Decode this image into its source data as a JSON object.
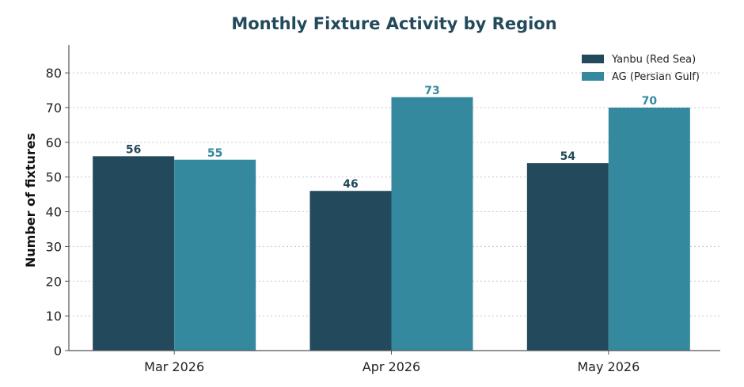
{
  "chart_data": {
    "type": "bar",
    "title": "Monthly Fixture Activity by Region",
    "xlabel": "",
    "ylabel": "Number of fixtures",
    "categories": [
      "Mar 2026",
      "Apr 2026",
      "May 2026"
    ],
    "series": [
      {
        "name": "Yanbu (Red Sea)",
        "values": [
          56,
          46,
          54
        ],
        "color": "#234a5c"
      },
      {
        "name": "AG (Persian Gulf)",
        "values": [
          55,
          73,
          70
        ],
        "color": "#35899e"
      }
    ],
    "ylim": [
      0,
      88
    ],
    "yticks": [
      0,
      10,
      20,
      30,
      40,
      50,
      60,
      70,
      80
    ],
    "grid": "horizontal-dotted",
    "legend_position": "top-right",
    "title_color": "#234a5c"
  }
}
